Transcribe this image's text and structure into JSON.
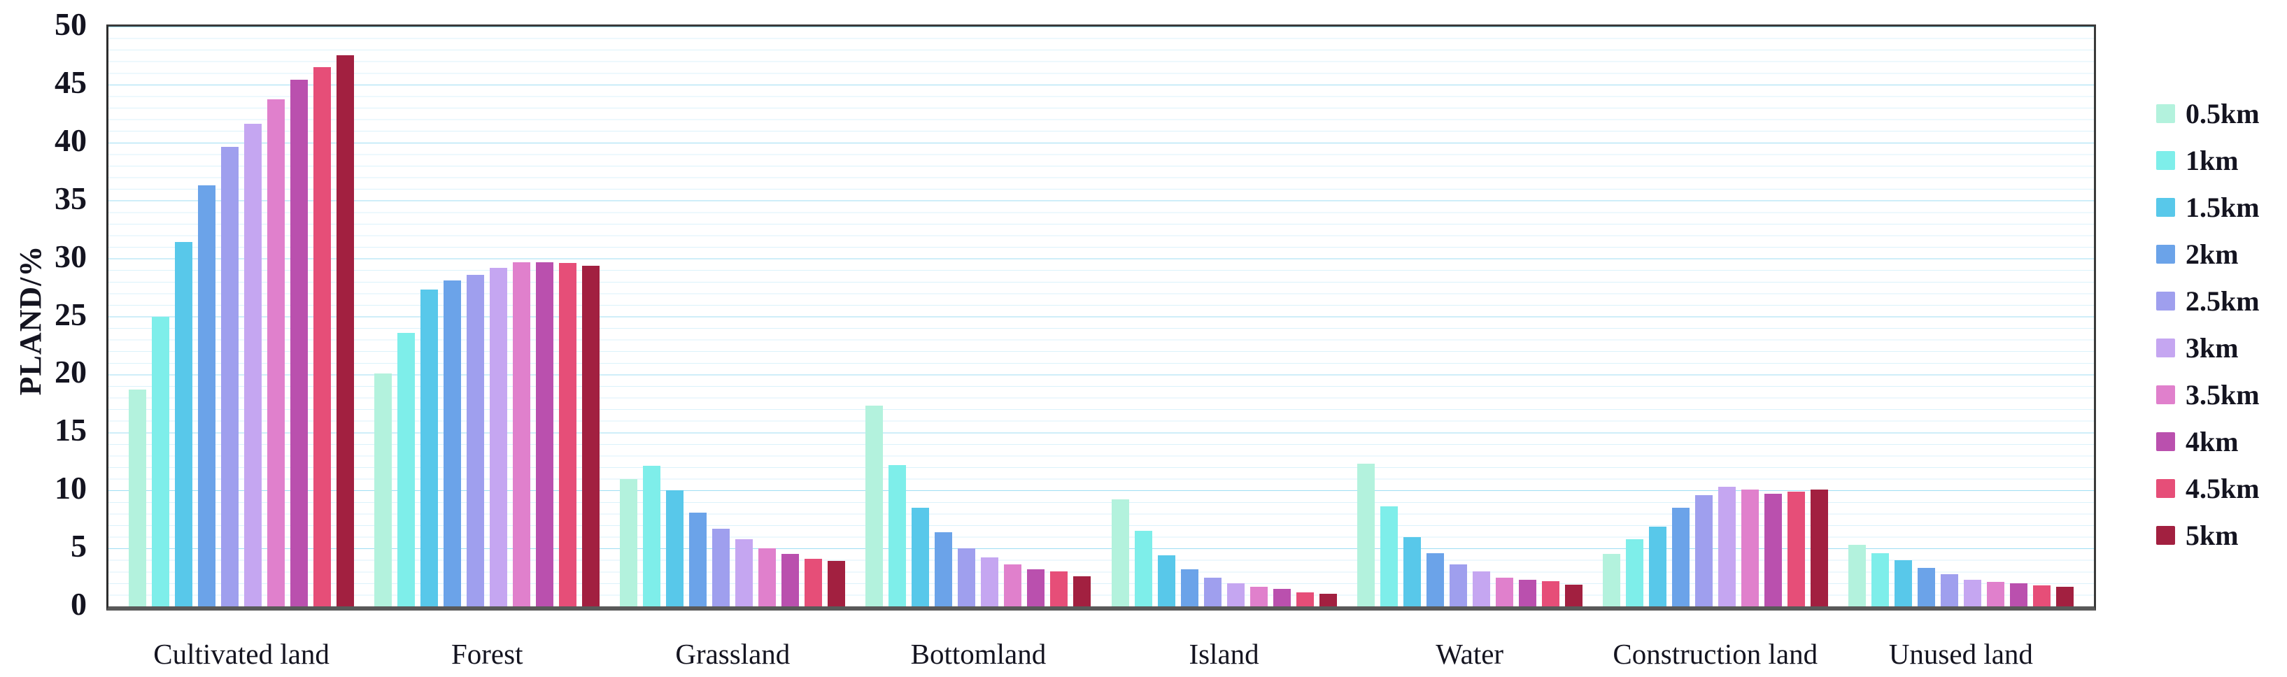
{
  "chart_data": {
    "type": "bar",
    "title": "",
    "xlabel": "",
    "ylabel": "PLAND/%",
    "ylim": [
      0,
      50
    ],
    "yticks": [
      0,
      5,
      10,
      15,
      20,
      25,
      30,
      35,
      40,
      45,
      50
    ],
    "grid": "horizontal, minor every 1 unit, major every 5 units",
    "legend_position": "right",
    "categories": [
      "Cultivated land",
      "Forest",
      "Grassland",
      "Bottomland",
      "Island",
      "Water",
      "Construction land",
      "Unused land"
    ],
    "series": [
      {
        "name": "0.5km",
        "color": "#b3f2dd",
        "values": [
          18.7,
          20.1,
          11.0,
          17.3,
          9.2,
          12.3,
          4.5,
          5.3
        ]
      },
      {
        "name": "1km",
        "color": "#7eeeea",
        "values": [
          25.0,
          23.6,
          12.1,
          12.2,
          6.5,
          8.6,
          5.8,
          4.6
        ]
      },
      {
        "name": "1.5km",
        "color": "#58c8ea",
        "values": [
          31.4,
          27.3,
          10.0,
          8.5,
          4.4,
          6.0,
          6.9,
          4.0
        ]
      },
      {
        "name": "2km",
        "color": "#6ba3e9",
        "values": [
          36.3,
          28.1,
          8.1,
          6.4,
          3.2,
          4.6,
          8.5,
          3.3
        ]
      },
      {
        "name": "2.5km",
        "color": "#9f9fee",
        "values": [
          39.6,
          28.6,
          6.7,
          5.0,
          2.5,
          3.6,
          9.6,
          2.8
        ]
      },
      {
        "name": "3km",
        "color": "#c5a6f1",
        "values": [
          41.6,
          29.2,
          5.8,
          4.2,
          2.0,
          3.0,
          10.3,
          2.3
        ]
      },
      {
        "name": "3.5km",
        "color": "#e080cc",
        "values": [
          43.7,
          29.7,
          5.0,
          3.6,
          1.7,
          2.5,
          10.1,
          2.1
        ]
      },
      {
        "name": "4km",
        "color": "#ba50ae",
        "values": [
          45.4,
          29.7,
          4.5,
          3.2,
          1.5,
          2.3,
          9.7,
          2.0
        ]
      },
      {
        "name": "4.5km",
        "color": "#e64e78",
        "values": [
          46.5,
          29.6,
          4.1,
          3.0,
          1.2,
          2.2,
          9.9,
          1.8
        ]
      },
      {
        "name": "5km",
        "color": "#a22040",
        "values": [
          47.5,
          29.4,
          3.9,
          2.6,
          1.1,
          1.9,
          10.1,
          1.7
        ]
      }
    ],
    "colors": {
      "grid_minor": "#dbf2fb",
      "grid_major": "#9fdef3",
      "axis_line": "#595959",
      "plot_border": "#3a3a3a",
      "text": "#141420"
    }
  }
}
